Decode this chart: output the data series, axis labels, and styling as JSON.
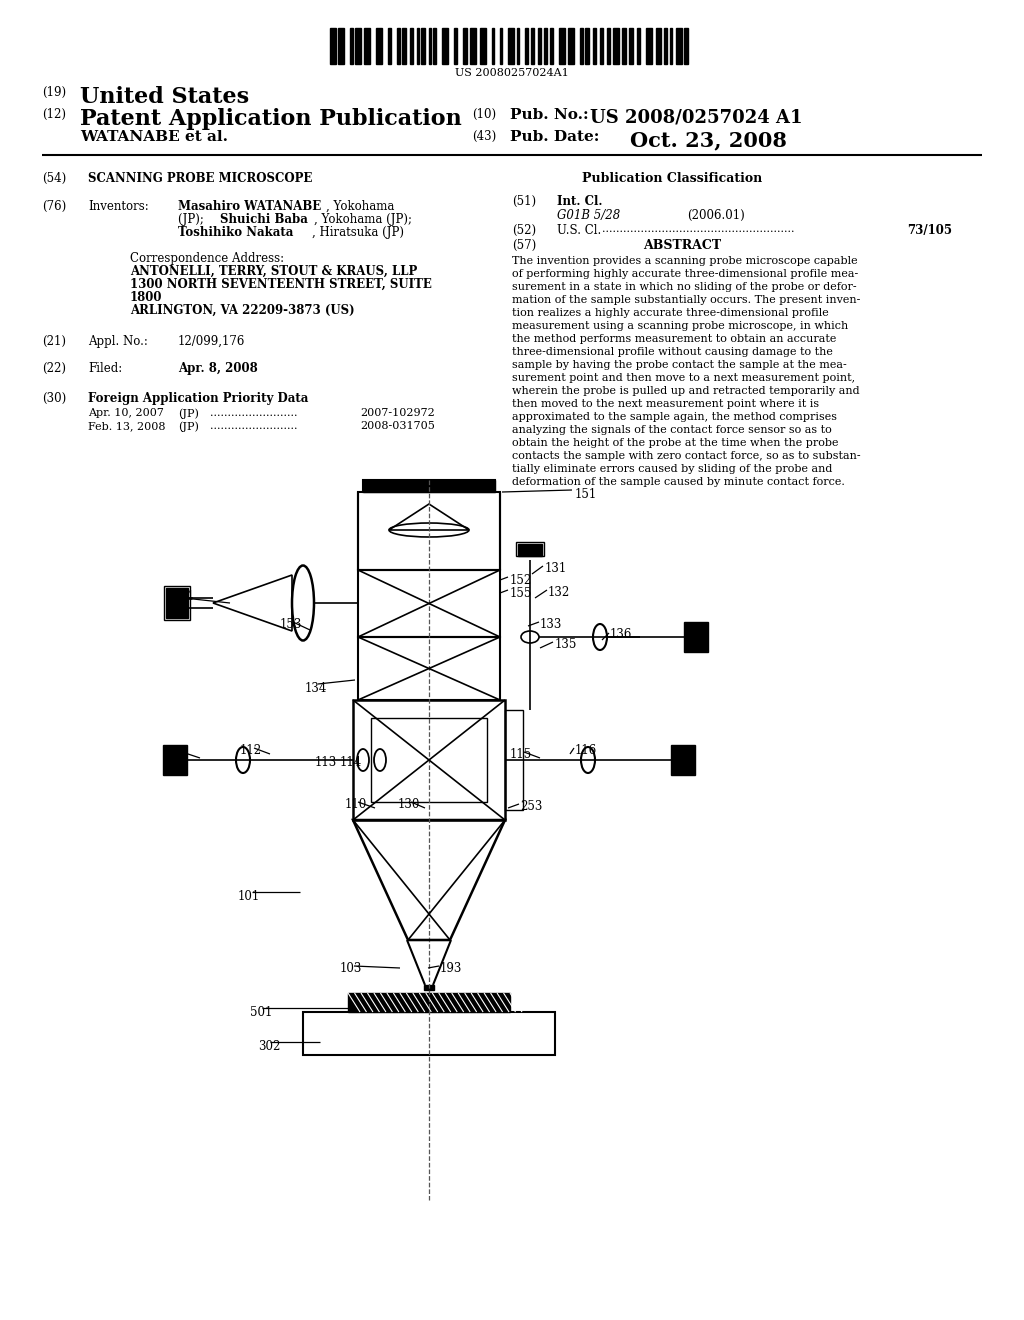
{
  "background_color": "#ffffff",
  "barcode_text": "US 20080257024A1",
  "pub_number": "US 2008/0257024 A1",
  "pub_date": "Oct. 23, 2008",
  "priority_data": [
    [
      "Apr. 10, 2007",
      "(JP)",
      "2007-102972"
    ],
    [
      "Feb. 13, 2008",
      "(JP)",
      "2008-031705"
    ]
  ],
  "abstract_lines": [
    "The invention provides a scanning probe microscope capable",
    "of performing highly accurate three-dimensional profile mea-",
    "surement in a state in which no sliding of the probe or defor-",
    "mation of the sample substantially occurs. The present inven-",
    "tion realizes a highly accurate three-dimensional profile",
    "measurement using a scanning probe microscope, in which",
    "the method performs measurement to obtain an accurate",
    "three-dimensional profile without causing damage to the",
    "sample by having the probe contact the sample at the mea-",
    "surement point and then move to a next measurement point,",
    "wherein the probe is pulled up and retracted temporarily and",
    "then moved to the next measurement point where it is",
    "approximated to the sample again, the method comprises",
    "analyzing the signals of the contact force sensor so as to",
    "obtain the height of the probe at the time when the probe",
    "contacts the sample with zero contact force, so as to substan-",
    "tially eliminate errors caused by sliding of the probe and",
    "deformation of the sample caused by minute contact force."
  ]
}
